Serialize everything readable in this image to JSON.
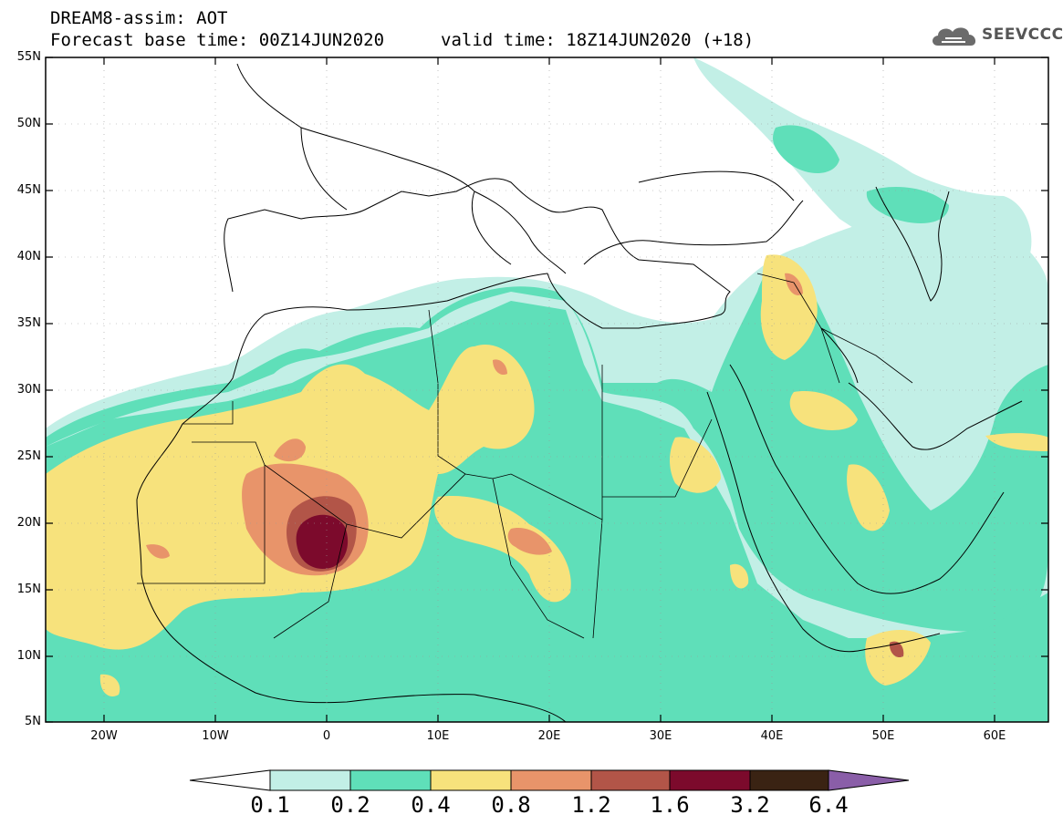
{
  "header": {
    "line1": "DREAM8-assim: AOT",
    "line2": "Forecast base time: 00Z14JUN2020",
    "valid": "valid time: 18Z14JUN2020 (+18)",
    "logo_text": "SEEVCCC",
    "logo_icon": "cloud-icon"
  },
  "map": {
    "lat_labels": [
      "55N",
      "50N",
      "45N",
      "40N",
      "35N",
      "30N",
      "25N",
      "20N",
      "15N",
      "10N",
      "5N"
    ],
    "lon_labels": [
      "20W",
      "10W",
      "0",
      "10E",
      "20E",
      "30E",
      "40E",
      "50E",
      "60E"
    ],
    "extent": {
      "lon": [
        -25,
        65
      ],
      "lat": [
        5,
        55
      ]
    },
    "field": "Aerosol Optical Thickness"
  },
  "colorbar": {
    "labels": [
      "0.1",
      "0.2",
      "0.4",
      "0.8",
      "1.2",
      "1.6",
      "3.2",
      "6.4"
    ],
    "colors": [
      "#ffffff",
      "#c2efe6",
      "#5fdfb9",
      "#f7e27c",
      "#e8946a",
      "#b25548",
      "#7c0a2c",
      "#3a2313",
      "#8a5ea8"
    ]
  }
}
